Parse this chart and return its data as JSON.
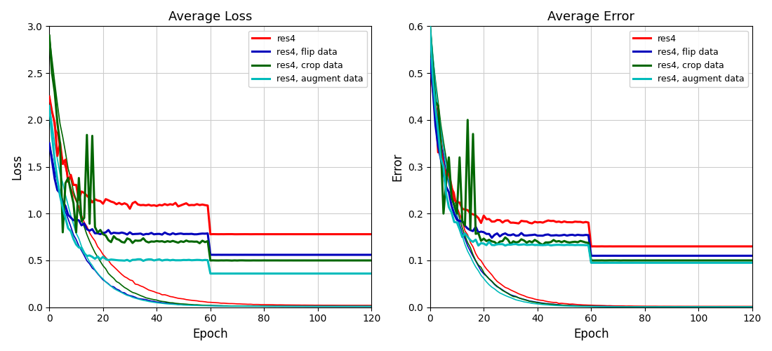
{
  "title_loss": "Average Loss",
  "title_error": "Average Error",
  "xlabel": "Epoch",
  "ylabel_loss": "Loss",
  "ylabel_error": "Error",
  "ylim_loss": [
    0.0,
    3.0
  ],
  "ylim_error": [
    0.0,
    0.6
  ],
  "xlim": [
    0,
    120
  ],
  "yticks_loss": [
    0.0,
    0.5,
    1.0,
    1.5,
    2.0,
    2.5,
    3.0
  ],
  "yticks_error": [
    0.0,
    0.1,
    0.2,
    0.3,
    0.4,
    0.5,
    0.6
  ],
  "xticks": [
    0,
    20,
    40,
    60,
    80,
    100,
    120
  ],
  "legend_labels": [
    "res4",
    "res4, flip data",
    "res4, crop data",
    "res4, augment data"
  ],
  "colors": [
    "#ff0000",
    "#0000bb",
    "#006600",
    "#00bbbb"
  ]
}
